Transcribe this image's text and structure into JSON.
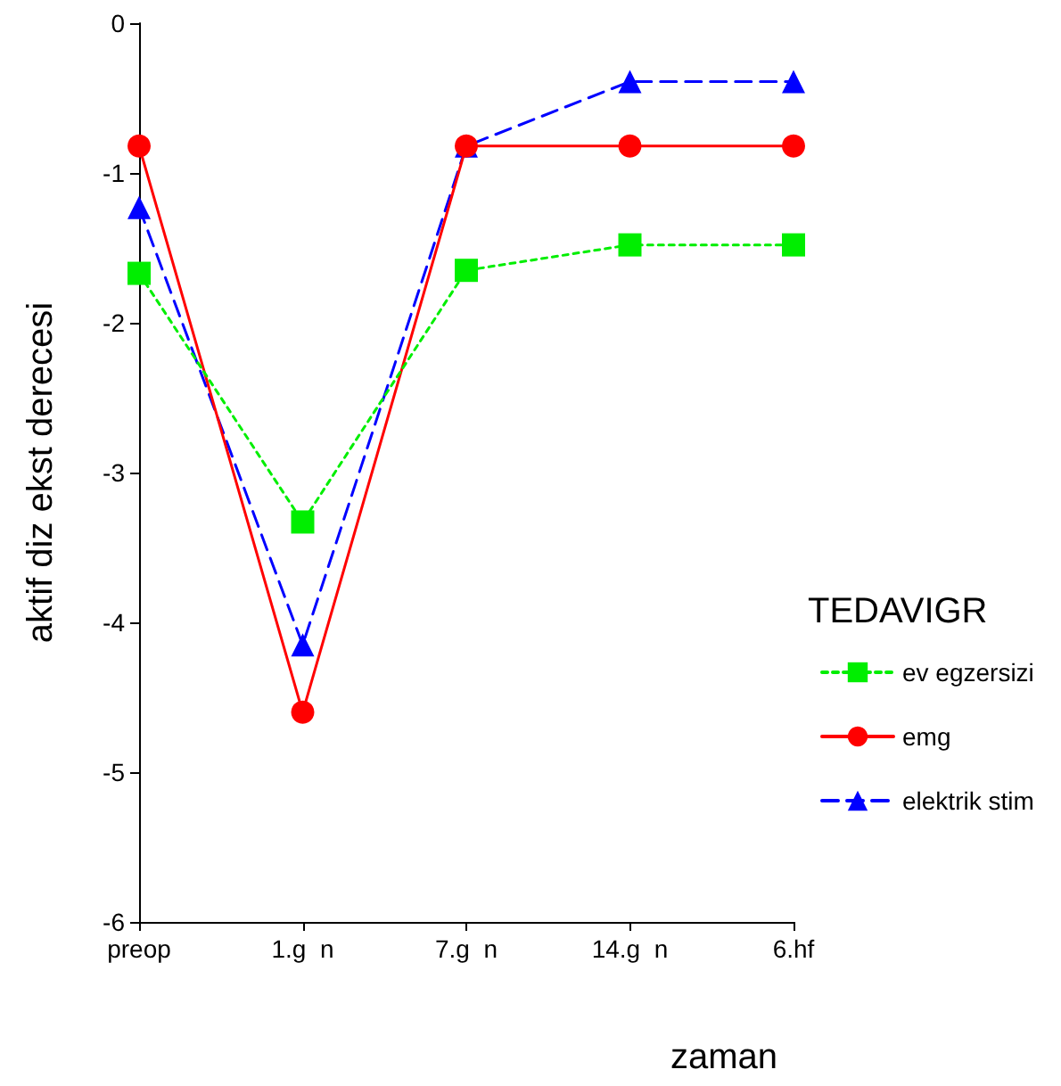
{
  "chart_data": {
    "type": "line",
    "xlabel": "zaman",
    "ylabel": "aktif diz ekst derecesi",
    "legend_title": "TEDAVIGR",
    "categories": [
      "preop",
      "1.g  n",
      "7.g  n",
      "14.g  n",
      "6.hf"
    ],
    "series": [
      {
        "name": "ev egzersizi",
        "color": "#00ee00",
        "marker": "square",
        "line_style": "dotted",
        "values": [
          -1.67,
          -3.33,
          -1.65,
          -1.48,
          -1.48
        ]
      },
      {
        "name": "emg",
        "color": "#ff0000",
        "marker": "circle",
        "line_style": "solid",
        "values": [
          -0.82,
          -4.6,
          -0.82,
          -0.82,
          -0.82
        ]
      },
      {
        "name": "elektrik stim",
        "color": "#0000ff",
        "marker": "triangle",
        "line_style": "dashed",
        "values": [
          -1.23,
          -4.15,
          -0.82,
          -0.39,
          -0.39
        ]
      }
    ],
    "ylim": [
      -6,
      0
    ],
    "yticks": [
      0,
      -1,
      -2,
      -3,
      -4,
      -5,
      -6
    ],
    "grid": false,
    "legend": "right"
  }
}
